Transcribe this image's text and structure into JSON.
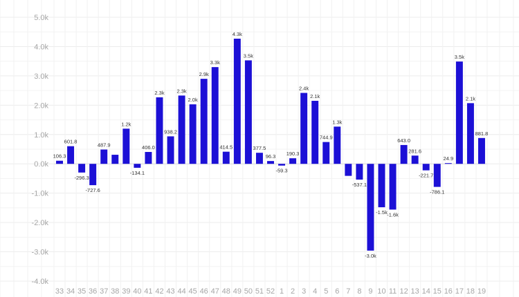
{
  "chart_data": {
    "type": "bar",
    "title": "",
    "xlabel": "",
    "ylabel": "",
    "ylim": [
      -4000,
      5000
    ],
    "y_ticks": [
      "5.0k",
      "4.0k",
      "3.0k",
      "2.0k",
      "1.0k",
      "0.0k",
      "-1.0k",
      "-2.0k",
      "-3.0k",
      "-4.0k"
    ],
    "y_tick_values": [
      5000,
      4000,
      3000,
      2000,
      1000,
      0,
      -1000,
      -2000,
      -3000,
      -4000
    ],
    "grid": true,
    "legend": "none",
    "bar_color": "#1c10d6",
    "categories": [
      "33",
      "34",
      "35",
      "36",
      "37",
      "38",
      "39",
      "40",
      "41",
      "42",
      "43",
      "44",
      "45",
      "46",
      "47",
      "48",
      "49",
      "50",
      "51",
      "52",
      "1",
      "2",
      "3",
      "4",
      "5",
      "6",
      "7",
      "8",
      "9",
      "10",
      "11",
      "12",
      "13",
      "14",
      "15",
      "16",
      "17",
      "18",
      "19"
    ],
    "values": [
      106.3,
      601.8,
      -296.3,
      -727.6,
      487.9,
      310,
      1200,
      -134.1,
      406.0,
      2270,
      938.2,
      2330,
      2030,
      2900,
      3300,
      414.5,
      4270,
      3530,
      377.5,
      96.3,
      -59.3,
      190.3,
      2420,
      2150,
      744.9,
      1270,
      -410,
      -537.1,
      -2960,
      -1480,
      -1560,
      643.0,
      281.6,
      -221.7,
      -786.1,
      24.9,
      3490,
      2070,
      881.8
    ],
    "labels": [
      "106.3",
      "601.8",
      "-296.3",
      "-727.6",
      "487.9",
      "",
      "1.2k",
      "-134.1",
      "406.0",
      "2.3k",
      "938.2",
      "2.3k",
      "2.0k",
      "2.9k",
      "3.3k",
      "414.5",
      "4.3k",
      "3.5k",
      "377.5",
      "96.3",
      "-59.3",
      "190.3",
      "2.4k",
      "2.1k",
      "744.9",
      "1.3k",
      "",
      "-537.1",
      "-3.0k",
      "-1.5k",
      "-1.6k",
      "643.0",
      "281.6",
      "-221.7",
      "-786.1",
      "24.9",
      "3.5k",
      "2.1k",
      "881.8"
    ]
  }
}
